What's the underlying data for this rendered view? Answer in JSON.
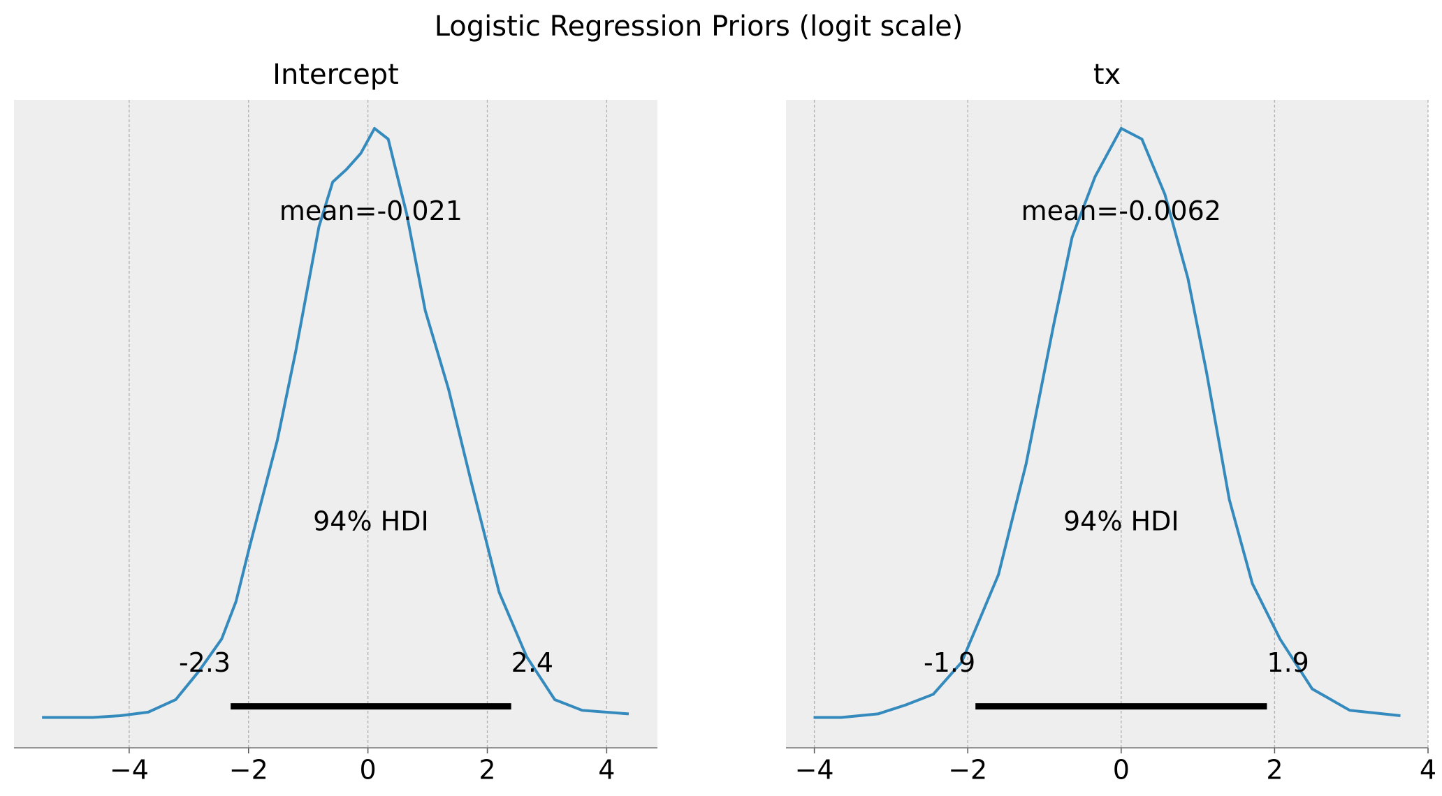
{
  "title": "Logistic Regression Priors (logit scale)",
  "chart_data": [
    {
      "type": "line",
      "title": "Intercept",
      "x": [
        -5.46,
        -4.61,
        -4.15,
        -3.68,
        -3.22,
        -2.83,
        -2.45,
        -2.21,
        -1.98,
        -1.52,
        -1.21,
        -0.82,
        -0.59,
        -0.36,
        -0.12,
        0.11,
        0.34,
        0.65,
        0.96,
        1.35,
        1.73,
        2.2,
        2.66,
        3.13,
        3.59,
        4.37
      ],
      "series": [
        {
          "color": "#348abd",
          "values": [
            0,
            0,
            0.001,
            0.003,
            0.01,
            0.026,
            0.044,
            0.065,
            0.096,
            0.155,
            0.205,
            0.275,
            0.3,
            0.307,
            0.316,
            0.33,
            0.324,
            0.282,
            0.228,
            0.184,
            0.132,
            0.07,
            0.034,
            0.01,
            0.004,
            0.002
          ]
        }
      ],
      "xlim": [
        -5.93,
        4.85
      ],
      "ylim": [
        -0.017,
        0.346
      ],
      "xticks": [
        {
          "value": -4,
          "label": "−4"
        },
        {
          "value": -2,
          "label": "−2"
        },
        0,
        2,
        4
      ],
      "grid": true,
      "mean_label": "mean=-0.021",
      "hdi_label": "94% HDI",
      "hdi": [
        -2.3,
        2.4
      ]
    },
    {
      "type": "line",
      "title": "tx",
      "x": [
        -4.01,
        -3.65,
        -3.17,
        -2.81,
        -2.45,
        -2.08,
        -1.6,
        -1.24,
        -0.88,
        -0.64,
        -0.34,
        0,
        0.27,
        0.57,
        0.87,
        1.11,
        1.41,
        1.71,
        2.07,
        2.49,
        2.98,
        3.64
      ],
      "series": [
        {
          "color": "#348abd",
          "values": [
            0,
            0,
            0.002,
            0.007,
            0.013,
            0.031,
            0.08,
            0.142,
            0.22,
            0.269,
            0.303,
            0.33,
            0.324,
            0.293,
            0.246,
            0.194,
            0.122,
            0.075,
            0.044,
            0.016,
            0.004,
            0.001
          ]
        }
      ],
      "xlim": [
        -4.37,
        4.0
      ],
      "ylim": [
        -0.017,
        0.346
      ],
      "xticks": [
        {
          "value": -4,
          "label": "−4"
        },
        {
          "value": -2,
          "label": "−2"
        },
        0,
        2,
        4
      ],
      "grid": true,
      "mean_label": "mean=-0.0062",
      "hdi_label": "94% HDI",
      "hdi": [
        -1.9,
        1.9
      ]
    }
  ]
}
